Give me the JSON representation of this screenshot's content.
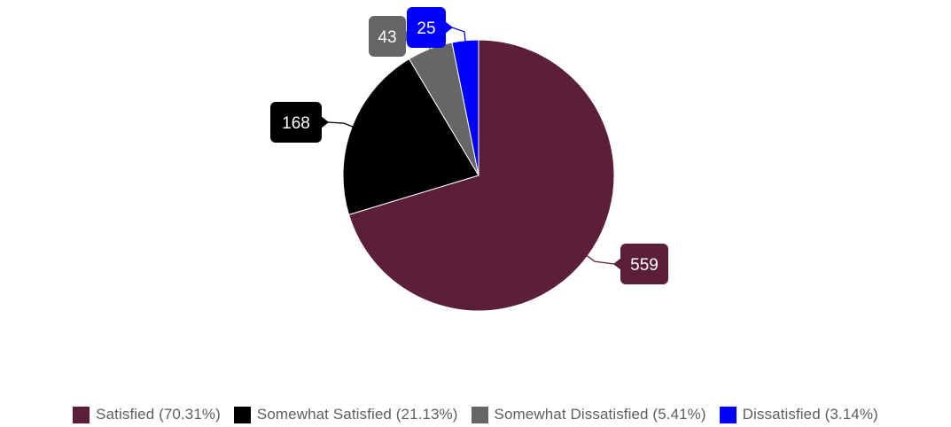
{
  "chart_data": {
    "type": "pie",
    "title": "",
    "start_angle_deg": 0,
    "direction": "clockwise",
    "slices": [
      {
        "label": "Satisfied",
        "value": 559,
        "percent": "70.31%",
        "color": "#5c1f3a"
      },
      {
        "label": "Somewhat Satisfied",
        "value": 168,
        "percent": "21.13%",
        "color": "#000000"
      },
      {
        "label": "Somewhat Dissatisfied",
        "value": 43,
        "percent": "5.41%",
        "color": "#666666"
      },
      {
        "label": "Dissatisfied",
        "value": 25,
        "percent": "3.14%",
        "color": "#0000ff"
      }
    ],
    "legend": {
      "position": "bottom",
      "items": [
        {
          "text": "Satisfied (70.31%)",
          "color": "#5c1f3a"
        },
        {
          "text": "Somewhat Satisfied (21.13%)",
          "color": "#000000"
        },
        {
          "text": "Somewhat Dissatisfied (5.41%)",
          "color": "#666666"
        },
        {
          "text": "Dissatisfied (3.14%)",
          "color": "#0000ff"
        }
      ]
    },
    "data_labels": [
      "559",
      "168",
      "43",
      "25"
    ]
  }
}
